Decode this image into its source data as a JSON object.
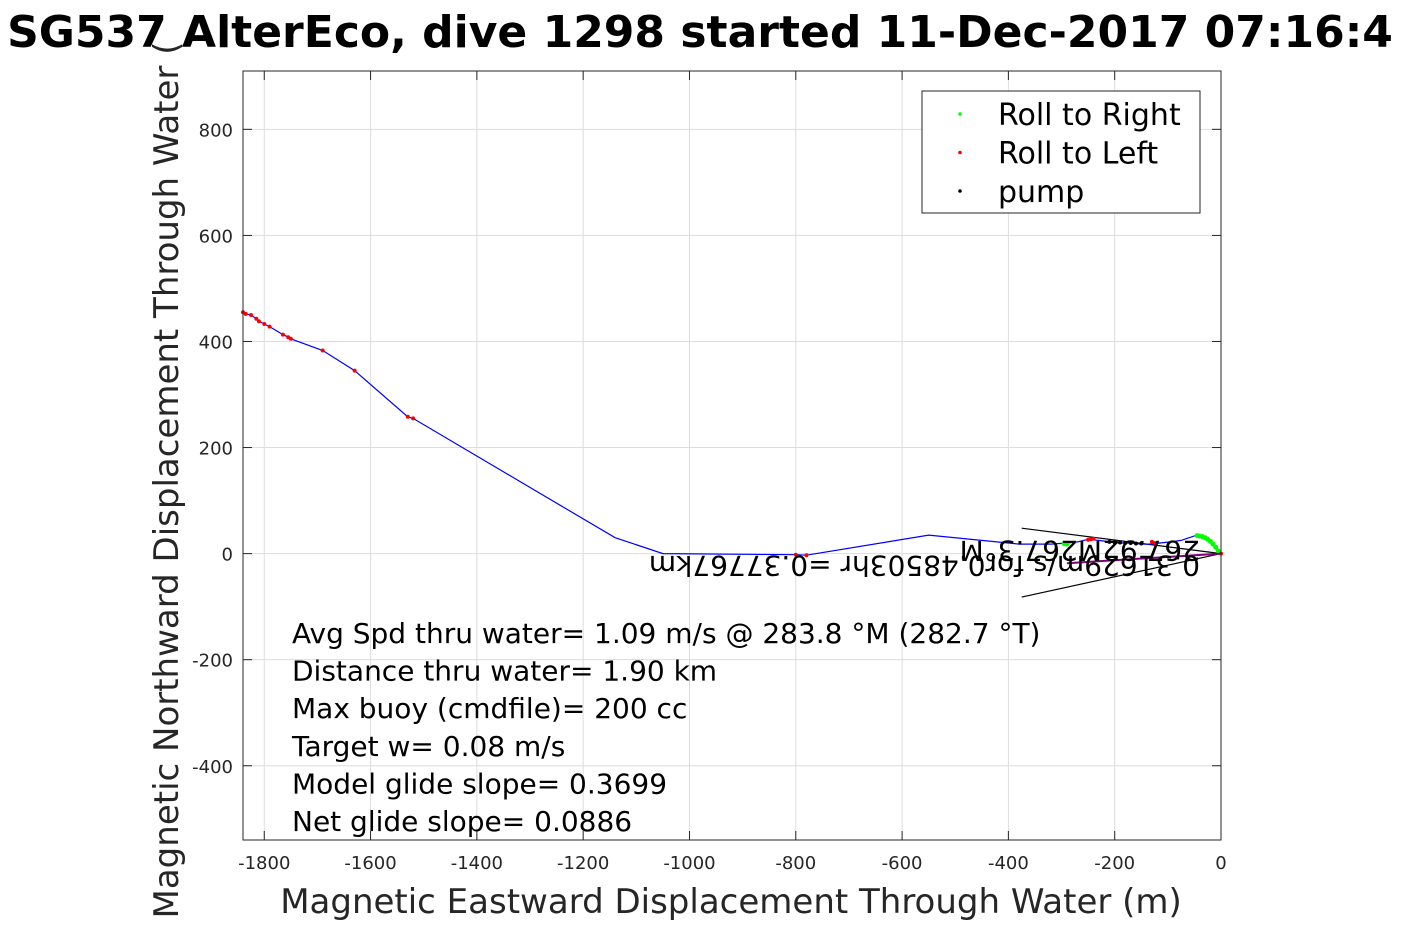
{
  "chart_data": {
    "type": "line",
    "title": "SG537 AlterEco, dive 1298 started 11-Dec-2017 07:16:4",
    "xlabel": "Magnetic Eastward Displacement Through Water (m)",
    "ylabel": "Magnetic Northward Displacement Through Water (",
    "xlim": [
      -1840,
      0
    ],
    "ylim": [
      -540,
      910
    ],
    "xticks": [
      -1800,
      -1600,
      -1400,
      -1200,
      -1000,
      -800,
      -600,
      -400,
      -200,
      0
    ],
    "yticks": [
      -400,
      -200,
      0,
      200,
      400,
      600,
      800
    ],
    "xtick_labels": [
      "-1800",
      "-1600",
      "-1400",
      "-1200",
      "-1000",
      "-800",
      "-600",
      "-400",
      "-200",
      "0"
    ],
    "ytick_labels": [
      "-400",
      "-200",
      "0",
      "200",
      "400",
      "600",
      "800"
    ],
    "grid": true,
    "legend_position": "top-right",
    "legend": [
      {
        "label": "Roll to Right",
        "color": "#00ff00"
      },
      {
        "label": "Roll to Left",
        "color": "#ff0000"
      },
      {
        "label": "pump",
        "color": "#000000"
      }
    ],
    "series": [
      {
        "color": "#0000ff",
        "x": [
          0,
          -20,
          -45,
          -60,
          -75,
          -95,
          -115,
          -130,
          -150,
          -170,
          -190,
          -210,
          -230,
          -250,
          -270,
          -290,
          -320,
          -380,
          -550,
          -780,
          -800,
          -1050,
          -1140,
          -1520,
          -1530,
          -1630,
          -1690,
          -1750,
          -1755,
          -1765,
          -1790,
          -1800,
          -1810,
          -1815,
          -1825,
          -1835,
          -1840
        ],
        "y": [
          0,
          25,
          35,
          30,
          25,
          22,
          20,
          18,
          18,
          20,
          20,
          22,
          25,
          27,
          22,
          20,
          18,
          18,
          35,
          -3,
          -2,
          0,
          30,
          255,
          258,
          345,
          383,
          405,
          408,
          413,
          428,
          433,
          438,
          443,
          450,
          452,
          455
        ]
      }
    ],
    "roll_right_points": {
      "color": "#00ff00",
      "x": [
        -5,
        -10,
        -15,
        -20,
        -25,
        -30,
        -35,
        -40,
        -45,
        -290,
        -295
      ],
      "y": [
        5,
        12,
        18,
        23,
        27,
        30,
        32,
        33,
        34,
        18,
        19
      ]
    },
    "roll_left_points": {
      "color": "#ff0000",
      "x": [
        0,
        -125,
        -130,
        -240,
        -245,
        -250,
        -780,
        -800,
        -1520,
        -1530,
        -1630,
        -1690,
        -1750,
        -1755,
        -1765,
        -1790,
        -1800,
        -1810,
        -1815,
        -1825,
        -1835,
        -1840
      ],
      "y": [
        0,
        20,
        22,
        28,
        27,
        26,
        -3,
        -2,
        255,
        258,
        345,
        383,
        405,
        408,
        413,
        428,
        433,
        438,
        443,
        450,
        452,
        455
      ]
    },
    "pump_points": {
      "color": "#000000",
      "x": [
        -150,
        -160,
        -170,
        -180,
        -190,
        -200,
        -210
      ],
      "y": [
        19,
        19,
        20,
        20,
        21,
        21,
        22
      ]
    },
    "current_vector": {
      "color": "#800080",
      "x": [
        0,
        -290
      ],
      "y": [
        0,
        -18
      ]
    },
    "fan_lines": {
      "color": "#000000",
      "lines": [
        {
          "x": [
            0,
            -375
          ],
          "y": [
            0,
            48
          ]
        },
        {
          "x": [
            0,
            -375
          ],
          "y": [
            0,
            -82
          ]
        }
      ]
    },
    "rotated_annotations": [
      "0.31629m/s for0.48503hr =0.37767km",
      "267.92M267.3°M"
    ],
    "annotation_lines": [
      "Avg Spd thru water=  1.09 m/s @ 283.8 °M (282.7 °T)",
      "Distance thru water=  1.90 km",
      "Max buoy (cmdfile)= 200 cc",
      "Target w= 0.08 m/s",
      "Model glide slope= 0.3699",
      "Net glide slope= 0.0886"
    ]
  }
}
